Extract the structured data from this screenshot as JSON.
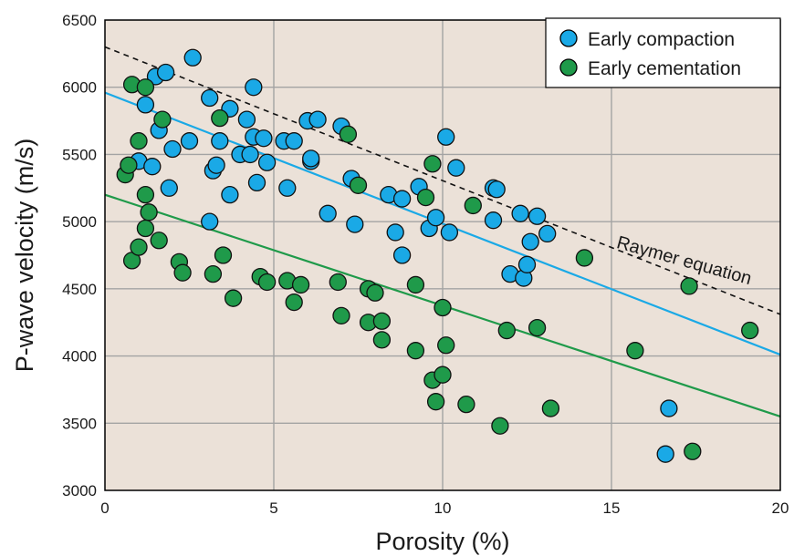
{
  "chart_data": {
    "type": "scatter",
    "title": "",
    "xlabel": "Porosity (%)",
    "ylabel": "P-wave velocity (m/s)",
    "xlim": [
      0,
      20
    ],
    "ylim": [
      3000,
      6500
    ],
    "xticks": [
      0,
      5,
      10,
      15,
      20
    ],
    "yticks": [
      3000,
      3500,
      4000,
      4500,
      5000,
      5500,
      6000,
      6500
    ],
    "grid": true,
    "legend": "top-right",
    "background": "#ebe1d8",
    "series": [
      {
        "name": "Early compaction",
        "color": "#1aa9e6",
        "points": [
          [
            1.0,
            5450
          ],
          [
            1.2,
            5870
          ],
          [
            1.4,
            5410
          ],
          [
            1.5,
            6080
          ],
          [
            1.6,
            5680
          ],
          [
            1.8,
            6110
          ],
          [
            1.9,
            5250
          ],
          [
            2.0,
            5540
          ],
          [
            2.5,
            5600
          ],
          [
            2.6,
            6220
          ],
          [
            3.1,
            5920
          ],
          [
            3.1,
            5000
          ],
          [
            3.2,
            5380
          ],
          [
            3.3,
            5420
          ],
          [
            3.4,
            5600
          ],
          [
            3.7,
            5840
          ],
          [
            3.7,
            5200
          ],
          [
            4.0,
            5500
          ],
          [
            4.2,
            5760
          ],
          [
            4.3,
            5500
          ],
          [
            4.4,
            6000
          ],
          [
            4.4,
            5630
          ],
          [
            4.5,
            5290
          ],
          [
            4.7,
            5620
          ],
          [
            4.8,
            5440
          ],
          [
            5.3,
            5600
          ],
          [
            5.4,
            5250
          ],
          [
            5.6,
            5600
          ],
          [
            6.0,
            5750
          ],
          [
            6.1,
            5450
          ],
          [
            6.1,
            5470
          ],
          [
            6.3,
            5760
          ],
          [
            6.6,
            5060
          ],
          [
            7.0,
            5710
          ],
          [
            7.3,
            5320
          ],
          [
            7.4,
            4980
          ],
          [
            8.4,
            5200
          ],
          [
            8.6,
            4920
          ],
          [
            8.8,
            5170
          ],
          [
            8.8,
            4750
          ],
          [
            9.3,
            5260
          ],
          [
            9.6,
            4950
          ],
          [
            9.8,
            5030
          ],
          [
            10.1,
            5630
          ],
          [
            10.2,
            4920
          ],
          [
            10.4,
            5400
          ],
          [
            11.5,
            5250
          ],
          [
            11.5,
            5010
          ],
          [
            11.6,
            5240
          ],
          [
            12.0,
            4610
          ],
          [
            12.3,
            5060
          ],
          [
            12.4,
            4580
          ],
          [
            12.5,
            4680
          ],
          [
            12.6,
            4850
          ],
          [
            12.8,
            5040
          ],
          [
            13.1,
            4910
          ],
          [
            16.6,
            3270
          ],
          [
            16.7,
            3610
          ]
        ]
      },
      {
        "name": "Early cementation",
        "color": "#1f9a4a",
        "points": [
          [
            0.6,
            5350
          ],
          [
            0.7,
            5420
          ],
          [
            0.8,
            6020
          ],
          [
            0.8,
            4710
          ],
          [
            1.0,
            5600
          ],
          [
            1.0,
            4810
          ],
          [
            1.2,
            6000
          ],
          [
            1.2,
            4950
          ],
          [
            1.2,
            5200
          ],
          [
            1.3,
            5070
          ],
          [
            1.6,
            4860
          ],
          [
            1.7,
            5760
          ],
          [
            2.2,
            4700
          ],
          [
            2.3,
            4620
          ],
          [
            3.2,
            4610
          ],
          [
            3.4,
            5770
          ],
          [
            3.5,
            4750
          ],
          [
            3.8,
            4430
          ],
          [
            4.6,
            4590
          ],
          [
            4.8,
            4550
          ],
          [
            5.4,
            4560
          ],
          [
            5.6,
            4400
          ],
          [
            5.8,
            4530
          ],
          [
            6.9,
            4550
          ],
          [
            7.0,
            4300
          ],
          [
            7.2,
            5650
          ],
          [
            7.5,
            5270
          ],
          [
            7.8,
            4250
          ],
          [
            7.8,
            4500
          ],
          [
            8.0,
            4470
          ],
          [
            8.2,
            4260
          ],
          [
            8.2,
            4120
          ],
          [
            9.2,
            4530
          ],
          [
            9.2,
            4040
          ],
          [
            9.5,
            5180
          ],
          [
            9.7,
            5430
          ],
          [
            9.7,
            3820
          ],
          [
            9.8,
            3660
          ],
          [
            10.0,
            4360
          ],
          [
            10.0,
            3860
          ],
          [
            10.1,
            4080
          ],
          [
            10.7,
            3640
          ],
          [
            10.9,
            5120
          ],
          [
            11.7,
            3480
          ],
          [
            11.9,
            4190
          ],
          [
            12.8,
            4210
          ],
          [
            13.2,
            3610
          ],
          [
            14.2,
            4730
          ],
          [
            15.7,
            4040
          ],
          [
            17.3,
            4520
          ],
          [
            17.4,
            3290
          ],
          [
            19.1,
            4190
          ]
        ]
      }
    ],
    "lines": [
      {
        "label": "",
        "color": "#1aa9e6",
        "style": "solid",
        "from": [
          0,
          5960
        ],
        "to": [
          20,
          4010
        ]
      },
      {
        "label": "",
        "color": "#1f9a4a",
        "style": "solid",
        "from": [
          0,
          5200
        ],
        "to": [
          20,
          3550
        ]
      },
      {
        "label": "Raymer equation",
        "color": "#111111",
        "style": "dashed",
        "from": [
          0,
          6300
        ],
        "to": [
          20,
          4310
        ]
      }
    ]
  }
}
